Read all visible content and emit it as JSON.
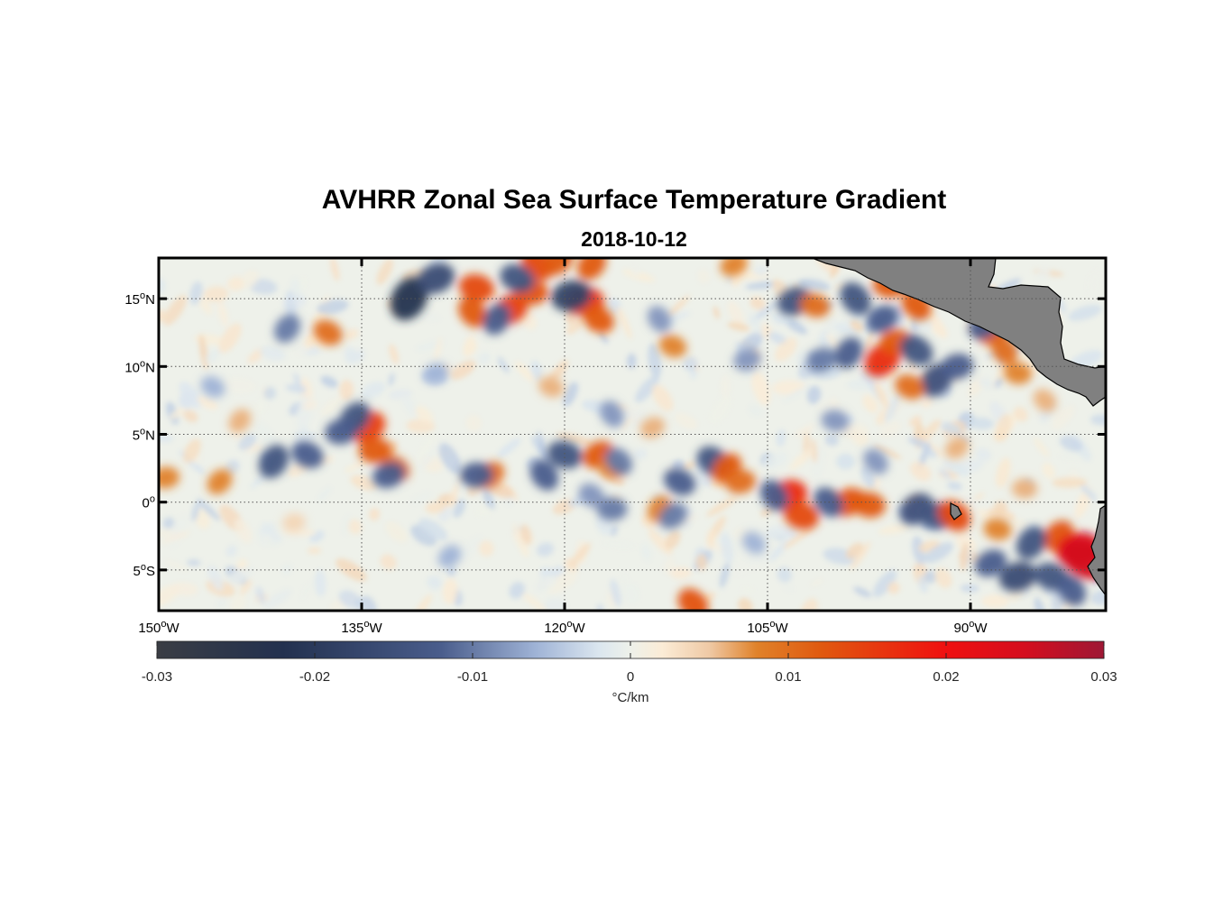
{
  "title": "AVHRR Zonal Sea Surface Temperature Gradient",
  "subtitle": "2018-10-12",
  "chart_data": {
    "type": "heatmap",
    "title": "AVHRR Zonal Sea Surface Temperature Gradient",
    "subtitle": "2018-10-12",
    "lon_range": [
      -150,
      -80
    ],
    "lat_range": [
      -8,
      18
    ],
    "lon_ticks": [
      {
        "value": -150,
        "num": "150",
        "sup": "o",
        "hem": "W"
      },
      {
        "value": -135,
        "num": "135",
        "sup": "o",
        "hem": "W"
      },
      {
        "value": -120,
        "num": "120",
        "sup": "o",
        "hem": "W"
      },
      {
        "value": -105,
        "num": "105",
        "sup": "o",
        "hem": "W"
      },
      {
        "value": -90,
        "num": "90",
        "sup": "o",
        "hem": "W"
      }
    ],
    "lat_ticks": [
      {
        "value": 15,
        "num": "15",
        "sup": "o",
        "hem": "N"
      },
      {
        "value": 10,
        "num": "10",
        "sup": "o",
        "hem": "N"
      },
      {
        "value": 5,
        "num": "5",
        "sup": "o",
        "hem": "N"
      },
      {
        "value": 0,
        "num": "0",
        "sup": "o",
        "hem": ""
      },
      {
        "value": -5,
        "num": "5",
        "sup": "o",
        "hem": "S"
      }
    ],
    "grid": true,
    "colorbar": {
      "range": [
        -0.03,
        0.03
      ],
      "ticks": [
        {
          "value": -0.03,
          "label": "-0.03"
        },
        {
          "value": -0.02,
          "label": "-0.02"
        },
        {
          "value": -0.01,
          "label": "-0.01"
        },
        {
          "value": 0,
          "label": "0"
        },
        {
          "value": 0.01,
          "label": "0.01"
        },
        {
          "value": 0.02,
          "label": "0.02"
        },
        {
          "value": 0.03,
          "label": "0.03"
        }
      ],
      "unit": "°C/km",
      "stops": [
        {
          "value": -0.03,
          "color": "#3a3d44"
        },
        {
          "value": -0.022,
          "color": "#23314f"
        },
        {
          "value": -0.012,
          "color": "#4a5d8c"
        },
        {
          "value": -0.006,
          "color": "#9fb3d6"
        },
        {
          "value": -0.002,
          "color": "#dbe6ef"
        },
        {
          "value": 0,
          "color": "#eef1ea"
        },
        {
          "value": 0.002,
          "color": "#fbecd6"
        },
        {
          "value": 0.005,
          "color": "#efc9a5"
        },
        {
          "value": 0.008,
          "color": "#e0822a"
        },
        {
          "value": 0.012,
          "color": "#e05a10"
        },
        {
          "value": 0.02,
          "color": "#ef1010"
        },
        {
          "value": 0.025,
          "color": "#d40e1e"
        },
        {
          "value": 0.03,
          "color": "#9e1835"
        }
      ]
    },
    "land_color": "#808080",
    "features": [
      {
        "lon": -131.5,
        "lat": 15.0,
        "value": -0.022
      },
      {
        "lon": -129.5,
        "lat": 16.5,
        "value": -0.016
      },
      {
        "lon": -126.5,
        "lat": 15.8,
        "value": 0.014
      },
      {
        "lon": -126.8,
        "lat": 14.0,
        "value": 0.012
      },
      {
        "lon": -124.0,
        "lat": 14.2,
        "value": 0.015
      },
      {
        "lon": -122.5,
        "lat": 15.5,
        "value": 0.013
      },
      {
        "lon": -122.0,
        "lat": 17.5,
        "value": 0.014
      },
      {
        "lon": -120.5,
        "lat": 17.8,
        "value": 0.012
      },
      {
        "lon": -118.5,
        "lat": 14.8,
        "value": 0.016
      },
      {
        "lon": -117.5,
        "lat": 13.5,
        "value": 0.012
      },
      {
        "lon": -118.0,
        "lat": 17.5,
        "value": 0.012
      },
      {
        "lon": -119.5,
        "lat": 15.2,
        "value": -0.018
      },
      {
        "lon": -123.5,
        "lat": 16.5,
        "value": -0.014
      },
      {
        "lon": -125.0,
        "lat": 13.5,
        "value": -0.012
      },
      {
        "lon": -103.0,
        "lat": 14.8,
        "value": -0.014
      },
      {
        "lon": -101.5,
        "lat": 14.5,
        "value": 0.01
      },
      {
        "lon": -98.5,
        "lat": 15.0,
        "value": -0.014
      },
      {
        "lon": -96.5,
        "lat": 13.5,
        "value": -0.012
      },
      {
        "lon": -96.0,
        "lat": 16.0,
        "value": 0.012
      },
      {
        "lon": -94.0,
        "lat": 14.5,
        "value": 0.012
      },
      {
        "lon": -96.5,
        "lat": 10.5,
        "value": 0.017
      },
      {
        "lon": -95.5,
        "lat": 11.8,
        "value": 0.012
      },
      {
        "lon": -94.0,
        "lat": 11.2,
        "value": -0.014
      },
      {
        "lon": -92.5,
        "lat": 9.0,
        "value": -0.015
      },
      {
        "lon": -91.0,
        "lat": 10.0,
        "value": -0.012
      },
      {
        "lon": -94.5,
        "lat": 8.5,
        "value": 0.01
      },
      {
        "lon": -99.0,
        "lat": 11.0,
        "value": -0.012
      },
      {
        "lon": -101.0,
        "lat": 10.5,
        "value": -0.01
      },
      {
        "lon": -88.5,
        "lat": 12.5,
        "value": 0.012
      },
      {
        "lon": -87.5,
        "lat": 11.2,
        "value": 0.01
      },
      {
        "lon": -89.0,
        "lat": 13.0,
        "value": -0.012
      },
      {
        "lon": -86.5,
        "lat": 9.5,
        "value": 0.008
      },
      {
        "lon": -84.5,
        "lat": 7.5,
        "value": 0.006
      },
      {
        "lon": -134.5,
        "lat": 5.5,
        "value": 0.015
      },
      {
        "lon": -134.0,
        "lat": 3.8,
        "value": 0.012
      },
      {
        "lon": -132.5,
        "lat": 2.5,
        "value": 0.01
      },
      {
        "lon": -135.5,
        "lat": 6.2,
        "value": -0.014
      },
      {
        "lon": -136.5,
        "lat": 5.2,
        "value": -0.012
      },
      {
        "lon": -139.0,
        "lat": 3.5,
        "value": -0.012
      },
      {
        "lon": -141.5,
        "lat": 3.0,
        "value": -0.014
      },
      {
        "lon": -133.0,
        "lat": 2.0,
        "value": -0.012
      },
      {
        "lon": -120.0,
        "lat": 3.5,
        "value": -0.014
      },
      {
        "lon": -121.5,
        "lat": 2.0,
        "value": -0.012
      },
      {
        "lon": -117.5,
        "lat": 3.5,
        "value": 0.012
      },
      {
        "lon": -116.5,
        "lat": 2.5,
        "value": 0.008
      },
      {
        "lon": -116.0,
        "lat": 3.0,
        "value": -0.01
      },
      {
        "lon": -125.5,
        "lat": 2.0,
        "value": 0.01
      },
      {
        "lon": -126.5,
        "lat": 2.0,
        "value": -0.012
      },
      {
        "lon": -109.0,
        "lat": 3.0,
        "value": -0.014
      },
      {
        "lon": -108.0,
        "lat": 2.5,
        "value": 0.012
      },
      {
        "lon": -107.0,
        "lat": 1.5,
        "value": 0.01
      },
      {
        "lon": -111.5,
        "lat": 1.5,
        "value": -0.012
      },
      {
        "lon": -113.0,
        "lat": -0.5,
        "value": 0.008
      },
      {
        "lon": -103.5,
        "lat": 0.5,
        "value": 0.017
      },
      {
        "lon": -102.5,
        "lat": -1.0,
        "value": 0.014
      },
      {
        "lon": -104.5,
        "lat": 0.5,
        "value": -0.012
      },
      {
        "lon": -99.0,
        "lat": 0.0,
        "value": 0.013
      },
      {
        "lon": -97.5,
        "lat": -0.2,
        "value": 0.012
      },
      {
        "lon": -100.5,
        "lat": 0.0,
        "value": -0.012
      },
      {
        "lon": -94.0,
        "lat": -0.5,
        "value": -0.015
      },
      {
        "lon": -92.5,
        "lat": -1.0,
        "value": -0.014
      },
      {
        "lon": -91.2,
        "lat": -1.0,
        "value": 0.014
      },
      {
        "lon": -83.5,
        "lat": -2.5,
        "value": 0.013
      },
      {
        "lon": -82.0,
        "lat": -3.5,
        "value": 0.022
      },
      {
        "lon": -81.5,
        "lat": -4.2,
        "value": 0.025
      },
      {
        "lon": -85.5,
        "lat": -3.0,
        "value": -0.014
      },
      {
        "lon": -86.5,
        "lat": -5.5,
        "value": -0.016
      },
      {
        "lon": -84.0,
        "lat": -5.5,
        "value": -0.014
      },
      {
        "lon": -82.5,
        "lat": -6.5,
        "value": -0.012
      },
      {
        "lon": -88.5,
        "lat": -4.5,
        "value": -0.012
      },
      {
        "lon": -88.0,
        "lat": -2.0,
        "value": 0.008
      },
      {
        "lon": -110.5,
        "lat": -7.5,
        "value": 0.013
      },
      {
        "lon": -112.0,
        "lat": -1.0,
        "value": -0.01
      },
      {
        "lon": -116.5,
        "lat": -0.5,
        "value": -0.01
      },
      {
        "lon": -118.0,
        "lat": 0.5,
        "value": -0.008
      },
      {
        "lon": -145.5,
        "lat": 1.5,
        "value": 0.008
      },
      {
        "lon": -149.5,
        "lat": 1.8,
        "value": 0.008
      },
      {
        "lon": -137.5,
        "lat": 12.5,
        "value": 0.01
      },
      {
        "lon": -140.5,
        "lat": 12.8,
        "value": -0.01
      },
      {
        "lon": -106.5,
        "lat": 10.5,
        "value": -0.008
      },
      {
        "lon": -112.0,
        "lat": 11.5,
        "value": 0.008
      },
      {
        "lon": -113.0,
        "lat": 13.5,
        "value": -0.008
      },
      {
        "lon": -107.5,
        "lat": 17.5,
        "value": 0.008
      },
      {
        "lon": -100.0,
        "lat": 6.0,
        "value": -0.008
      },
      {
        "lon": -97.0,
        "lat": 3.0,
        "value": -0.008
      },
      {
        "lon": -91.0,
        "lat": 4.0,
        "value": 0.006
      },
      {
        "lon": -86.0,
        "lat": 1.0,
        "value": 0.006
      },
      {
        "lon": -106.0,
        "lat": -3.0,
        "value": -0.006
      },
      {
        "lon": -128.5,
        "lat": -4.0,
        "value": -0.006
      },
      {
        "lon": -140.0,
        "lat": -1.5,
        "value": 0.004
      },
      {
        "lon": -146.0,
        "lat": 8.5,
        "value": -0.006
      },
      {
        "lon": -144.0,
        "lat": 6.0,
        "value": 0.006
      },
      {
        "lon": -129.5,
        "lat": 9.5,
        "value": -0.006
      },
      {
        "lon": -121.0,
        "lat": 8.5,
        "value": 0.006
      },
      {
        "lon": -116.5,
        "lat": 6.5,
        "value": -0.008
      },
      {
        "lon": -113.5,
        "lat": 5.5,
        "value": 0.006
      }
    ]
  }
}
